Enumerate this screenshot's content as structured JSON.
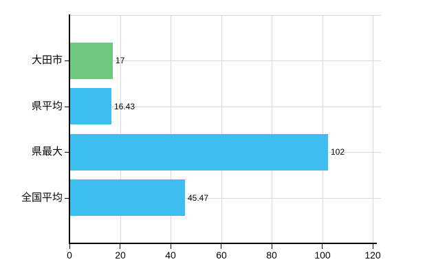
{
  "chart_data": {
    "type": "bar",
    "orientation": "horizontal",
    "title": "",
    "xlabel": "",
    "ylabel": "",
    "categories": [
      "大田市",
      "県平均",
      "県最大",
      "全国平均"
    ],
    "values": [
      17,
      16.43,
      102,
      45.47
    ],
    "value_labels": [
      "17",
      "16.43",
      "102",
      "45.47"
    ],
    "bar_colors": [
      "#6ec87e",
      "#3cbeee",
      "#3cbeee",
      "#3cbeee"
    ],
    "x_ticks": [
      "0",
      "20",
      "40",
      "60",
      "80",
      "100",
      "120"
    ],
    "x_tick_values": [
      0,
      20,
      40,
      60,
      80,
      100,
      120
    ],
    "xlim": [
      0,
      120
    ],
    "grid": true,
    "legend_position": "none",
    "colors": {
      "grid": "#d9d9d9",
      "axis": "#000000",
      "text": "#000000",
      "background": "#ffffff",
      "bar_default": "#3cbeee",
      "bar_highlight": "#6ec87e"
    }
  }
}
